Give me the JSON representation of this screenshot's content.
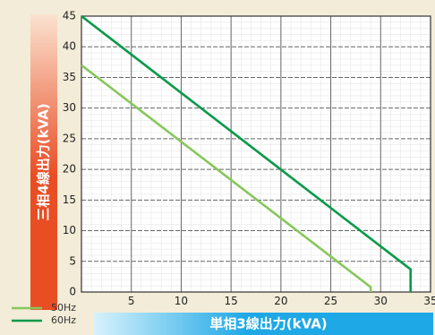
{
  "chart_data": {
    "type": "line",
    "xlabel": "単相3線出力(kVA)",
    "ylabel": "三相4線出力(kVA)",
    "xlim": [
      0,
      35
    ],
    "ylim": [
      0,
      45
    ],
    "x_ticks": [
      "5",
      "10",
      "15",
      "20",
      "25",
      "30",
      "35"
    ],
    "y_ticks": [
      "0",
      "5",
      "10",
      "15",
      "20",
      "25",
      "30",
      "35",
      "40",
      "45"
    ],
    "grid": true,
    "legend_position": "bottom-left",
    "series": [
      {
        "name": "50Hz",
        "color": "#86c75a",
        "points": [
          [
            0,
            37
          ],
          [
            29,
            0.8
          ],
          [
            29,
            0
          ]
        ]
      },
      {
        "name": "60Hz",
        "color": "#0a9a4a",
        "points": [
          [
            0,
            45
          ],
          [
            33,
            3.7
          ],
          [
            33,
            0
          ]
        ]
      }
    ]
  },
  "colors": {
    "ylabel_gradient": [
      "#fbe2d0",
      "#e94d24"
    ],
    "xlabel_gradient": [
      "#d9f2fc",
      "#1fa8e6"
    ]
  }
}
